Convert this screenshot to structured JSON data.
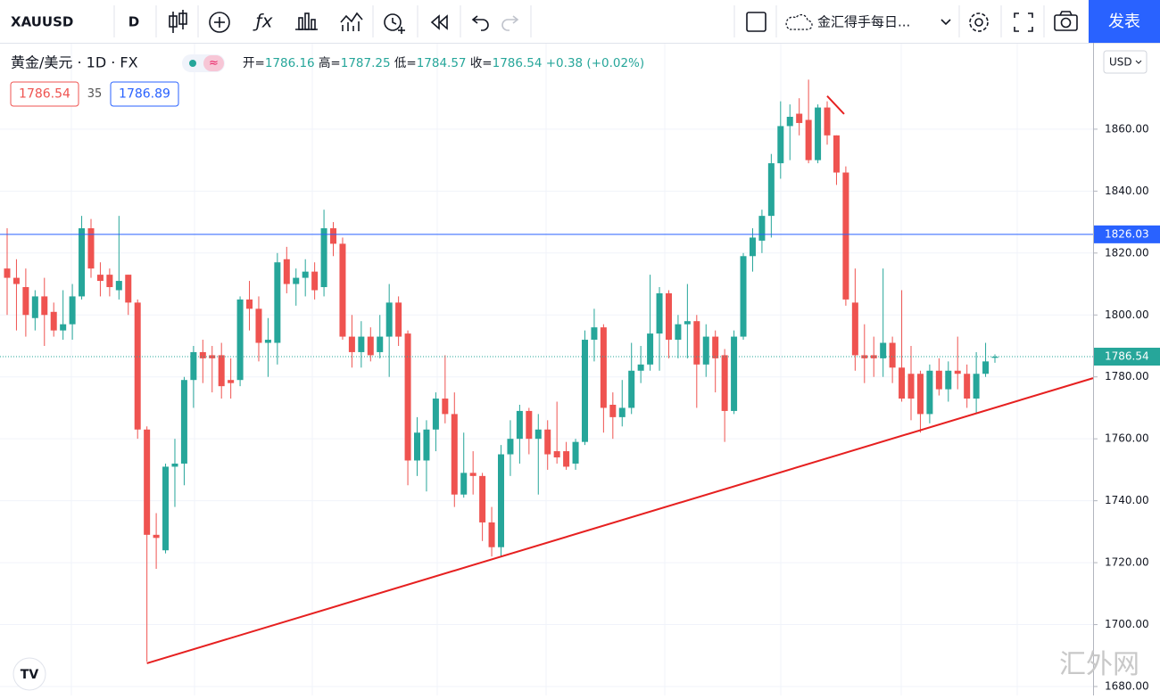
{
  "toolbar": {
    "symbol": "XAUUSD",
    "interval": "D",
    "layout_name": "金汇得手每日...",
    "publish": "发表"
  },
  "header": {
    "instrument": "黄金/美元 · 1D · FX",
    "open_label": "开=",
    "high_label": "高=",
    "low_label": "低=",
    "close_label": "收=",
    "change": "+0.38",
    "change_pct": "(+0.02%)",
    "sell": "1786.54",
    "spread": "35",
    "buy": "1786.89",
    "currency": "USD"
  },
  "watermark": "汇外网",
  "chart_data": {
    "type": "candlestick",
    "up_color": "#26a69a",
    "down_color": "#ef5350",
    "open": [
      1815,
      1812,
      1809,
      1799,
      1806,
      1801,
      1795,
      1797,
      1806,
      1828,
      1813,
      1813,
      1808,
      1813,
      1804,
      1763,
      1729,
      1724,
      1751,
      1752,
      1779,
      1788,
      1787,
      1787,
      1779,
      1779,
      1805,
      1802,
      1791,
      1791,
      1818,
      1810,
      1812,
      1814,
      1809,
      1828,
      1823,
      1793,
      1788,
      1793,
      1788,
      1793,
      1804,
      1794,
      1753,
      1753,
      1763,
      1773,
      1768,
      1742,
      1749,
      1748,
      1733,
      1725,
      1755,
      1760,
      1769,
      1760,
      1763,
      1756,
      1756,
      1752,
      1759,
      1792,
      1796,
      1771,
      1767,
      1770,
      1782,
      1784,
      1794,
      1807,
      1792,
      1797,
      1798,
      1784,
      1793,
      1787,
      1769,
      1793,
      1819,
      1824,
      1832,
      1849,
      1861,
      1865,
      1863,
      1850,
      1867,
      1858,
      1846,
      1804,
      1787,
      1787,
      1786,
      1791,
      1783,
      1781,
      1781,
      1768,
      1782,
      1776,
      1782,
      1781,
      1773,
      1781,
      1786.16
    ],
    "high": [
      1828,
      1818,
      1815,
      1808,
      1812,
      1804,
      1808,
      1810,
      1832,
      1831,
      1817,
      1815,
      1832,
      1813,
      1805,
      1764,
      1736,
      1752,
      1760,
      1780,
      1790,
      1792,
      1790,
      1791,
      1786,
      1806,
      1811,
      1806,
      1799,
      1820,
      1822,
      1815,
      1818,
      1817,
      1834,
      1830,
      1825,
      1800,
      1798,
      1796,
      1800,
      1810,
      1806,
      1795,
      1767,
      1766,
      1775,
      1787,
      1775,
      1762,
      1756,
      1749,
      1738,
      1758,
      1766,
      1771,
      1770,
      1768,
      1766,
      1772,
      1759,
      1760,
      1795,
      1802,
      1797,
      1775,
      1779,
      1791,
      1790,
      1813,
      1809,
      1808,
      1800,
      1810,
      1800,
      1797,
      1795,
      1789,
      1795,
      1820,
      1828,
      1834,
      1852,
      1869,
      1868,
      1870,
      1876,
      1868,
      1869,
      1858,
      1848,
      1815,
      1797,
      1793,
      1815,
      1793,
      1808,
      1790,
      1782,
      1784,
      1786,
      1785,
      1793,
      1784,
      1788,
      1791,
      1787.25
    ],
    "low": [
      1800,
      1795,
      1793,
      1795,
      1790,
      1793,
      1792,
      1792,
      1805,
      1812,
      1806,
      1806,
      1805,
      1800,
      1760,
      1688,
      1718,
      1723,
      1738,
      1745,
      1770,
      1778,
      1775,
      1773,
      1773,
      1777,
      1795,
      1785,
      1780,
      1784,
      1807,
      1803,
      1806,
      1805,
      1806,
      1819,
      1792,
      1783,
      1783,
      1785,
      1786,
      1780,
      1790,
      1745,
      1748,
      1743,
      1756,
      1765,
      1738,
      1741,
      1742,
      1727,
      1722,
      1722,
      1748,
      1752,
      1755,
      1742,
      1750,
      1752,
      1750,
      1750,
      1758,
      1785,
      1762,
      1760,
      1764,
      1768,
      1778,
      1782,
      1782,
      1786,
      1786,
      1786,
      1770,
      1780,
      1775,
      1759,
      1768,
      1792,
      1814,
      1820,
      1825,
      1844,
      1850,
      1858,
      1849,
      1849,
      1855,
      1842,
      1803,
      1782,
      1778,
      1780,
      1780,
      1778,
      1772,
      1766,
      1762,
      1765,
      1774,
      1772,
      1776,
      1770,
      1768,
      1780,
      1784.57
    ],
    "close": [
      1812,
      1810,
      1800,
      1806,
      1800,
      1795,
      1797,
      1806,
      1828,
      1815,
      1811,
      1809,
      1811,
      1804,
      1763,
      1729,
      1728,
      1751,
      1752,
      1779,
      1788,
      1786,
      1786,
      1777,
      1778,
      1805,
      1802,
      1791,
      1792,
      1817,
      1810,
      1812,
      1814,
      1808,
      1828,
      1823,
      1793,
      1788,
      1793,
      1787,
      1793,
      1804,
      1793,
      1753,
      1762,
      1763,
      1773,
      1768,
      1742,
      1749,
      1748,
      1733,
      1725,
      1755,
      1760,
      1769,
      1760,
      1763,
      1755,
      1754,
      1751,
      1759,
      1792,
      1796,
      1770,
      1767,
      1770,
      1782,
      1784,
      1794,
      1807,
      1792,
      1797,
      1798,
      1784,
      1793,
      1786,
      1769,
      1793,
      1819,
      1825,
      1832,
      1849,
      1861,
      1864,
      1862,
      1850,
      1867,
      1858,
      1846,
      1805,
      1787,
      1786,
      1786,
      1791,
      1783,
      1773,
      1773,
      1768,
      1782,
      1776,
      1782,
      1781,
      1773,
      1781,
      1785,
      1786.54
    ],
    "ylim": [
      1677.7,
      1887.9
    ],
    "yticks": [
      {
        "value": 1680,
        "label": "1680.00"
      },
      {
        "value": 1700,
        "label": "1700.00"
      },
      {
        "value": 1720,
        "label": "1720.00"
      },
      {
        "value": 1740,
        "label": "1740.00"
      },
      {
        "value": 1760,
        "label": "1760.00"
      },
      {
        "value": 1780,
        "label": "1780.00"
      },
      {
        "value": 1800,
        "label": "1800.00"
      },
      {
        "value": 1820,
        "label": "1820.00"
      },
      {
        "value": 1840,
        "label": "1840.00"
      },
      {
        "value": 1860,
        "label": "1860.00"
      }
    ],
    "grid": true,
    "hline": {
      "value": 1826.03,
      "color": "#2962ff"
    },
    "trendlines": [
      {
        "color": "#e62020",
        "values": [
          1687.5,
          1779.6
        ]
      },
      {
        "color": "#e62020",
        "values": [
          1870.7,
          1864.9
        ]
      }
    ]
  }
}
